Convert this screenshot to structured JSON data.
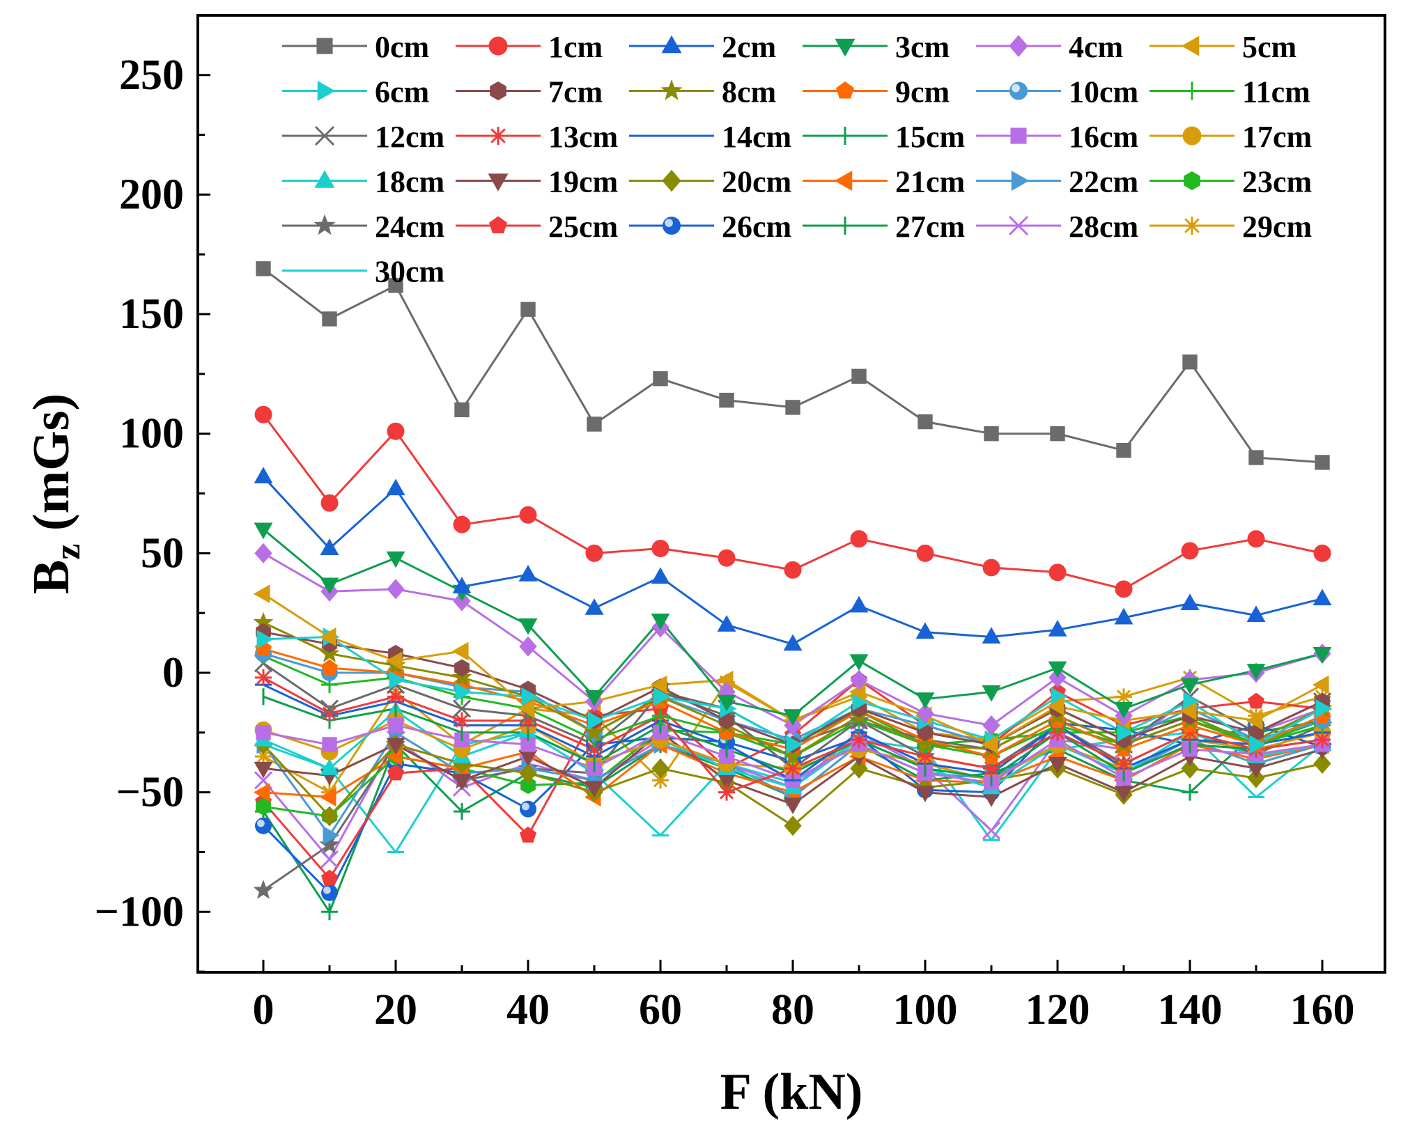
{
  "chart_data": {
    "type": "line",
    "title": "",
    "xlabel": "F (kN)",
    "ylabel_main": "B",
    "ylabel_sub": "z",
    "ylabel_unit": "(mGs)",
    "xlim": [
      -10,
      170
    ],
    "ylim": [
      -125,
      275
    ],
    "x_ticks": [
      0,
      20,
      40,
      60,
      80,
      100,
      120,
      140,
      160
    ],
    "x_tick_labels": [
      "0",
      "20",
      "40",
      "60",
      "80",
      "100",
      "120",
      "140",
      "160"
    ],
    "y_ticks": [
      -100,
      -50,
      0,
      50,
      100,
      150,
      200,
      250
    ],
    "y_tick_labels": [
      "−100",
      "−50",
      "0",
      "50",
      "100",
      "150",
      "200",
      "250"
    ],
    "grid": false,
    "legend_position": "top",
    "legend_columns": 6,
    "x": [
      0,
      10,
      20,
      30,
      40,
      50,
      60,
      70,
      80,
      90,
      100,
      110,
      120,
      130,
      140,
      150,
      160
    ],
    "series": [
      {
        "name": "0cm",
        "color": "#6b6b6b",
        "marker": "square",
        "values": [
          169,
          148,
          162,
          110,
          152,
          104,
          123,
          114,
          111,
          124,
          105,
          100,
          100,
          93,
          130,
          90,
          88
        ]
      },
      {
        "name": "1cm",
        "color": "#f03a3a",
        "marker": "circle",
        "values": [
          108,
          71,
          101,
          62,
          66,
          50,
          52,
          48,
          43,
          56,
          50,
          44,
          42,
          35,
          51,
          56,
          50
        ]
      },
      {
        "name": "2cm",
        "color": "#1763d6",
        "marker": "triangle-up",
        "values": [
          82,
          52,
          77,
          36,
          41,
          27,
          40,
          20,
          12,
          28,
          17,
          15,
          18,
          23,
          29,
          24,
          31
        ]
      },
      {
        "name": "3cm",
        "color": "#0f9e4e",
        "marker": "triangle-down",
        "values": [
          60,
          37,
          48,
          34,
          20,
          -10,
          22,
          -12,
          -18,
          5,
          -11,
          -8,
          2,
          -15,
          -5,
          1,
          8
        ]
      },
      {
        "name": "4cm",
        "color": "#b86ee6",
        "marker": "diamond",
        "values": [
          50,
          34,
          35,
          30,
          11,
          -12,
          19,
          -8,
          -22,
          -3,
          -17,
          -22,
          -2,
          -18,
          -3,
          0,
          8
        ]
      },
      {
        "name": "5cm",
        "color": "#d89c08",
        "marker": "triangle-left",
        "values": [
          33,
          15,
          5,
          9,
          -15,
          -12,
          -5,
          -3,
          -20,
          -8,
          -18,
          -30,
          -14,
          -20,
          -16,
          -20,
          -5
        ]
      },
      {
        "name": "6cm",
        "color": "#1ccfcf",
        "marker": "triangle-right",
        "values": [
          14,
          15,
          -3,
          -8,
          -10,
          -20,
          -10,
          -15,
          -30,
          -12,
          -20,
          -28,
          -10,
          -25,
          -12,
          -30,
          -15
        ]
      },
      {
        "name": "7cm",
        "color": "#8b4a4a",
        "marker": "hexagon",
        "values": [
          17,
          12,
          8,
          2,
          -7,
          -20,
          -6,
          -20,
          -30,
          -15,
          -25,
          -30,
          -15,
          -28,
          -18,
          -25,
          -12
        ]
      },
      {
        "name": "8cm",
        "color": "#8b8b00",
        "marker": "star",
        "values": [
          21,
          8,
          3,
          -2,
          -10,
          -25,
          -10,
          -22,
          -35,
          -18,
          -30,
          -32,
          -18,
          -30,
          -20,
          -28,
          -15
        ]
      },
      {
        "name": "9cm",
        "color": "#ff6a00",
        "marker": "pentagon",
        "values": [
          10,
          2,
          0,
          -5,
          -12,
          -22,
          -12,
          -25,
          -32,
          -16,
          -28,
          -35,
          -20,
          -32,
          -22,
          -30,
          -18
        ]
      },
      {
        "name": "10cm",
        "color": "#4a9ad6",
        "marker": "sphere",
        "values": [
          8,
          0,
          0,
          -6,
          -8,
          -25,
          -10,
          -20,
          -28,
          -15,
          -22,
          -30,
          -15,
          -28,
          -15,
          -28,
          -20
        ]
      },
      {
        "name": "11cm",
        "color": "#22b822",
        "marker": "plus",
        "values": [
          7,
          -5,
          -2,
          -10,
          -15,
          -28,
          -18,
          -25,
          -35,
          -20,
          -30,
          -35,
          -22,
          -30,
          -20,
          -30,
          -22
        ]
      },
      {
        "name": "12cm",
        "color": "#6b6b6b",
        "marker": "cross",
        "values": [
          4,
          -15,
          -5,
          -15,
          -18,
          -30,
          -8,
          -15,
          -30,
          -20,
          -28,
          -32,
          -18,
          -30,
          -10,
          -25,
          -12
        ]
      },
      {
        "name": "13cm",
        "color": "#f03a3a",
        "marker": "asterisk",
        "values": [
          -2,
          -17,
          -10,
          -20,
          -20,
          -32,
          -18,
          -50,
          -40,
          -28,
          -35,
          -40,
          -25,
          -38,
          -25,
          -32,
          -28
        ]
      },
      {
        "name": "14cm",
        "color": "#1763d6",
        "marker": "hline",
        "values": [
          -5,
          -18,
          -12,
          -22,
          -22,
          -35,
          -20,
          -30,
          -45,
          -25,
          -38,
          -42,
          -22,
          -40,
          -28,
          -30,
          -25
        ]
      },
      {
        "name": "15cm",
        "color": "#0f9e4e",
        "marker": "vline",
        "values": [
          -10,
          -20,
          -15,
          -25,
          -25,
          -38,
          -22,
          -32,
          -42,
          -28,
          -40,
          -44,
          -25,
          -42,
          -30,
          -32,
          -28
        ]
      },
      {
        "name": "16cm",
        "color": "#b86ee6",
        "marker": "square",
        "values": [
          -25,
          -30,
          -22,
          -28,
          -30,
          -40,
          -25,
          -35,
          -45,
          -30,
          -42,
          -46,
          -28,
          -44,
          -32,
          -34,
          -30
        ]
      },
      {
        "name": "17cm",
        "color": "#d89c08",
        "marker": "circle",
        "values": [
          -24,
          -33,
          -20,
          -32,
          -22,
          -38,
          -28,
          -38,
          -40,
          -32,
          -38,
          -45,
          -30,
          -40,
          -28,
          -32,
          -25
        ]
      },
      {
        "name": "18cm",
        "color": "#1ccfcf",
        "marker": "triangle-up",
        "values": [
          -28,
          -40,
          -16,
          -35,
          -25,
          -38,
          -28,
          -40,
          -48,
          -28,
          -40,
          -48,
          -30,
          -42,
          -25,
          -35,
          -30
        ]
      },
      {
        "name": "19cm",
        "color": "#8b4a4a",
        "marker": "triangle-down",
        "values": [
          -40,
          -43,
          -30,
          -45,
          -35,
          -48,
          -25,
          -45,
          -55,
          -35,
          -50,
          -52,
          -38,
          -50,
          -35,
          -40,
          -32
        ]
      },
      {
        "name": "20cm",
        "color": "#8b8b00",
        "marker": "diamond",
        "values": [
          -30,
          -60,
          -30,
          -38,
          -42,
          -50,
          -40,
          -46,
          -64,
          -40,
          -48,
          -45,
          -40,
          -51,
          -40,
          -44,
          -38
        ]
      },
      {
        "name": "21cm",
        "color": "#ff6a00",
        "marker": "triangle-left",
        "values": [
          -50,
          -52,
          -35,
          -40,
          -33,
          -52,
          -30,
          -42,
          -50,
          -35,
          -45,
          -46,
          -35,
          -45,
          -30,
          -36,
          -30
        ]
      },
      {
        "name": "22cm",
        "color": "#4a9ad6",
        "marker": "triangle-right",
        "values": [
          -30,
          -68,
          -25,
          -42,
          -40,
          -45,
          -30,
          -38,
          -52,
          -30,
          -42,
          -44,
          -30,
          -42,
          -28,
          -38,
          -30
        ]
      },
      {
        "name": "23cm",
        "color": "#22b822",
        "marker": "hexagon",
        "values": [
          -56,
          -60,
          -35,
          -40,
          -47,
          -46,
          -24,
          -25,
          -30,
          -16,
          -30,
          -28,
          -25,
          -25,
          -18,
          -30,
          -20
        ]
      },
      {
        "name": "24cm",
        "color": "#6b6b6b",
        "marker": "star",
        "values": [
          -91,
          -72,
          -30,
          -45,
          -40,
          -42,
          -8,
          -18,
          -40,
          -20,
          -35,
          -40,
          -22,
          -38,
          -25,
          -34,
          -22
        ]
      },
      {
        "name": "25cm",
        "color": "#f03a3a",
        "marker": "pentagon",
        "values": [
          -54,
          -86,
          -42,
          -40,
          -68,
          -18,
          -15,
          -40,
          -26,
          -3,
          -22,
          -30,
          -8,
          -22,
          -15,
          -12,
          -15
        ]
      },
      {
        "name": "26cm",
        "color": "#1763d6",
        "marker": "sphere",
        "values": [
          -64,
          -92,
          -38,
          -42,
          -57,
          -30,
          -27,
          -29,
          -37,
          -27,
          -49,
          -50,
          -21,
          -24,
          -30,
          -22,
          -31
        ]
      },
      {
        "name": "27cm",
        "color": "#0f9e4e",
        "marker": "plus",
        "values": [
          -58,
          -100,
          -30,
          -58,
          -42,
          -48,
          -30,
          -40,
          -52,
          -30,
          -45,
          -42,
          -32,
          -45,
          -50,
          -25,
          -20
        ]
      },
      {
        "name": "28cm",
        "color": "#b86ee6",
        "marker": "cross",
        "values": [
          -45,
          -78,
          -28,
          -48,
          -38,
          -45,
          -28,
          -38,
          -48,
          -25,
          -40,
          -66,
          -28,
          -32,
          -10,
          -25,
          -15
        ]
      },
      {
        "name": "29cm",
        "color": "#d89c08",
        "marker": "asterisk",
        "values": [
          -35,
          -50,
          -8,
          -30,
          -15,
          -18,
          -45,
          -4,
          -20,
          -10,
          -25,
          -28,
          -12,
          -10,
          -2,
          -18,
          -10
        ]
      },
      {
        "name": "30cm",
        "color": "#1ccfcf",
        "marker": "hline",
        "values": [
          -30,
          -40,
          -75,
          -30,
          -25,
          -42,
          -68,
          -38,
          -46,
          -28,
          -32,
          -70,
          -32,
          -28,
          -25,
          -52,
          -30
        ]
      }
    ]
  }
}
